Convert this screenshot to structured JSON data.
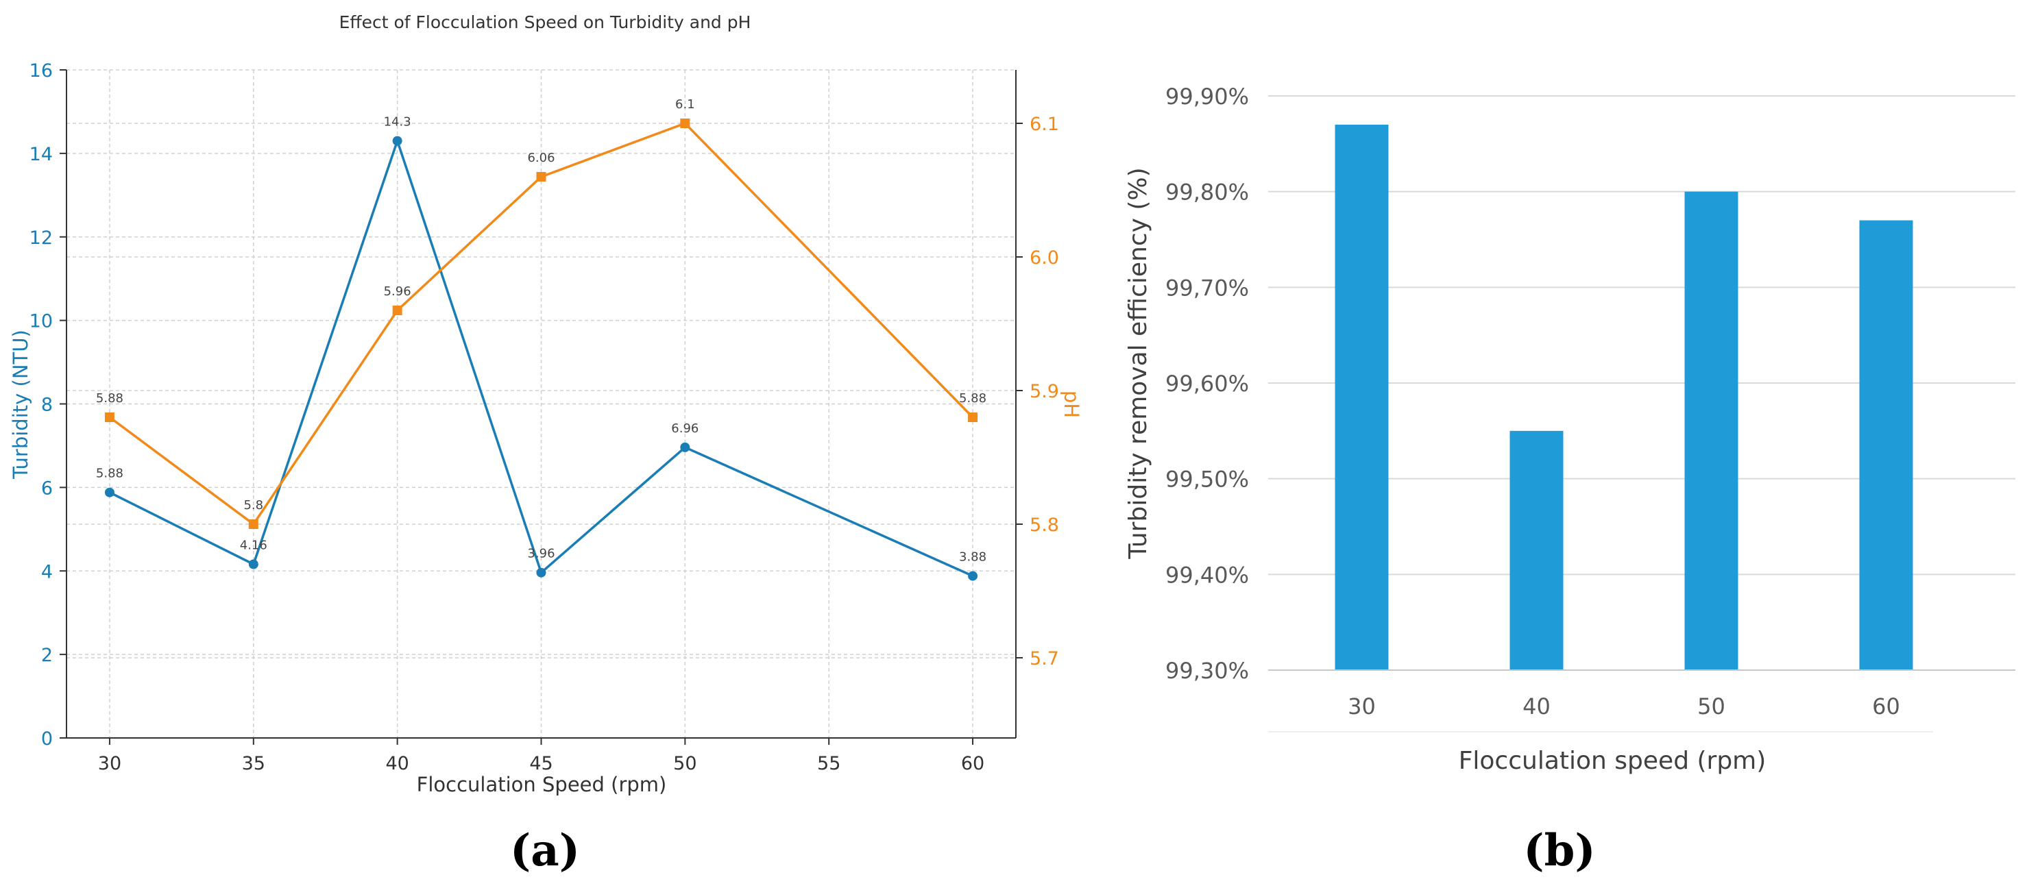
{
  "chart_data": [
    {
      "type": "line",
      "title": "Effect of Flocculation Speed on Turbidity and pH",
      "xlabel": "Flocculation Speed (rpm)",
      "ylabel": "Turbidity (NTU)",
      "y2label": "pH",
      "x": [
        30,
        35,
        40,
        45,
        50,
        60
      ],
      "xticks": [
        "30",
        "35",
        "40",
        "45",
        "50",
        "55",
        "60"
      ],
      "xtick_values": [
        30,
        35,
        40,
        45,
        50,
        55,
        60
      ],
      "xlim": [
        28.5,
        61.5
      ],
      "ylim": [
        0,
        16
      ],
      "yticks": [
        "0",
        "2",
        "4",
        "6",
        "8",
        "10",
        "12",
        "14",
        "16"
      ],
      "y2lim": [
        5.64,
        6.14
      ],
      "y2ticks": [
        "5.7",
        "5.8",
        "5.9",
        "6.0",
        "6.1"
      ],
      "y2tick_values": [
        5.7,
        5.8,
        5.9,
        6.0,
        6.1
      ],
      "grid": true,
      "series": [
        {
          "name": "Turbidity",
          "axis": "left",
          "color": "#1a7db5",
          "marker": "circle",
          "values": [
            5.88,
            4.16,
            14.3,
            3.96,
            6.96,
            3.88
          ],
          "labels": [
            "5.88",
            "4.16",
            "14.3",
            "3.96",
            "6.96",
            "3.88"
          ]
        },
        {
          "name": "pH",
          "axis": "right",
          "color": "#f28a1a",
          "marker": "square",
          "values": [
            5.88,
            5.8,
            5.96,
            6.06,
            6.1,
            5.88
          ],
          "labels": [
            "5.88",
            "5.8",
            "5.96",
            "6.06",
            "6.1",
            "5.88"
          ]
        }
      ],
      "panel_label": "(a)"
    },
    {
      "type": "bar",
      "categories": [
        "30",
        "40",
        "50",
        "60"
      ],
      "values": [
        99.87,
        99.55,
        99.8,
        99.77
      ],
      "xlabel": "Flocculation speed (rpm)",
      "ylabel": "Turbidity removal efficiency (%)",
      "ylim": [
        99.3,
        99.9
      ],
      "yticks": [
        "99,30%",
        "99,40%",
        "99,50%",
        "99,60%",
        "99,70%",
        "99,80%",
        "99,90%"
      ],
      "bar_color": "#1f9cd8",
      "grid": true,
      "panel_label": "(b)"
    }
  ]
}
